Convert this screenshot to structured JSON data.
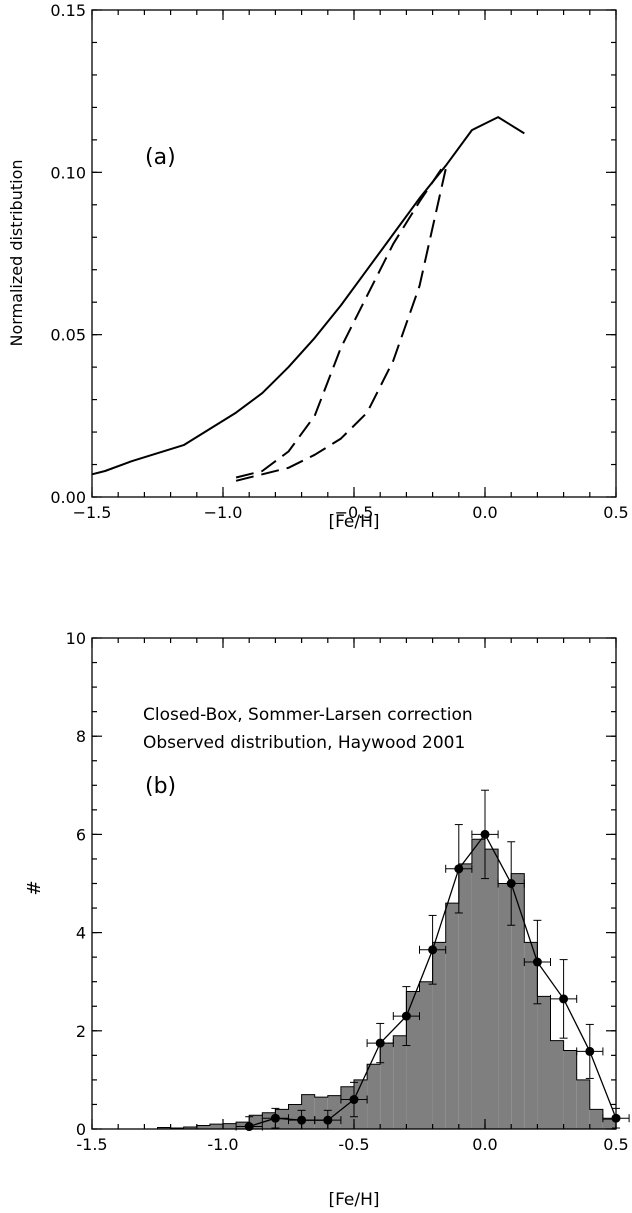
{
  "chart_data": [
    {
      "type": "line",
      "panel_label": "(a)",
      "xlabel": "[Fe/H]",
      "ylabel": "Normalized distribution",
      "xlim": [
        -1.5,
        0.5
      ],
      "ylim": [
        0.0,
        0.15
      ],
      "xticks": [
        -1.5,
        -1.0,
        -0.5,
        0.0,
        0.5
      ],
      "xtick_labels": [
        "−1.5",
        "−1.0",
        "−0.5",
        "0.0",
        "0.5"
      ],
      "yticks": [
        0.0,
        0.05,
        0.1,
        0.15
      ],
      "ytick_labels": [
        "0.00",
        "0.05",
        "0.10",
        "0.15"
      ],
      "series": [
        {
          "style": "solid",
          "x": [
            -1.5,
            -1.45,
            -1.35,
            -1.15,
            -0.95,
            -0.85,
            -0.75,
            -0.65,
            -0.55,
            -0.45,
            -0.35,
            -0.25,
            -0.15,
            -0.05,
            0.05,
            0.15
          ],
          "y": [
            0.007,
            0.008,
            0.011,
            0.016,
            0.026,
            0.032,
            0.04,
            0.049,
            0.059,
            0.07,
            0.081,
            0.092,
            0.102,
            0.113,
            0.117,
            0.112
          ]
        },
        {
          "style": "dashed",
          "x": [
            -0.95,
            -0.85,
            -0.75,
            -0.65,
            -0.55,
            -0.45,
            -0.35,
            -0.25,
            -0.15
          ],
          "y": [
            0.006,
            0.008,
            0.014,
            0.025,
            0.046,
            0.062,
            0.078,
            0.091,
            0.103
          ]
        },
        {
          "style": "dashed",
          "x": [
            -0.95,
            -0.85,
            -0.75,
            -0.65,
            -0.55,
            -0.45,
            -0.35,
            -0.25,
            -0.15
          ],
          "y": [
            0.005,
            0.007,
            0.009,
            0.013,
            0.018,
            0.026,
            0.042,
            0.065,
            0.101
          ]
        }
      ]
    },
    {
      "type": "bar",
      "panel_label": "(b)",
      "annotations": [
        "Closed-Box, Sommer-Larsen correction",
        "Observed distribution, Haywood 2001"
      ],
      "xlabel": "[Fe/H]",
      "ylabel": "#",
      "xlim": [
        -1.5,
        0.5
      ],
      "ylim": [
        0,
        10
      ],
      "xticks": [
        -1.5,
        -1.0,
        -0.5,
        0.0,
        0.5
      ],
      "xtick_labels": [
        "-1.5",
        "-1.0",
        "-0.5",
        "0.0",
        "0.5"
      ],
      "yticks": [
        0,
        2,
        4,
        6,
        8,
        10
      ],
      "ytick_labels": [
        "0",
        "2",
        "4",
        "6",
        "8",
        "10"
      ],
      "histogram": {
        "bin_width": 0.05,
        "bin_left": [
          -1.25,
          -1.2,
          -1.15,
          -1.1,
          -1.05,
          -1.0,
          -0.95,
          -0.9,
          -0.85,
          -0.8,
          -0.75,
          -0.7,
          -0.65,
          -0.6,
          -0.55,
          -0.5,
          -0.45,
          -0.4,
          -0.35,
          -0.3,
          -0.25,
          -0.2,
          -0.15,
          -0.1,
          -0.05,
          0.0,
          0.05,
          0.1,
          0.15,
          0.2,
          0.25,
          0.3,
          0.35,
          0.4,
          0.45
        ],
        "values": [
          0.03,
          0.02,
          0.04,
          0.07,
          0.1,
          0.11,
          0.14,
          0.28,
          0.33,
          0.4,
          0.5,
          0.7,
          0.65,
          0.68,
          0.86,
          1.0,
          1.32,
          1.75,
          1.9,
          2.8,
          3.0,
          3.8,
          4.6,
          5.4,
          5.9,
          5.7,
          5.0,
          5.2,
          3.8,
          2.7,
          1.8,
          1.6,
          1.0,
          0.4,
          0.2
        ]
      },
      "series": [
        {
          "style": "line-markers",
          "x": [
            -0.9,
            -0.8,
            -0.7,
            -0.6,
            -0.5,
            -0.4,
            -0.3,
            -0.2,
            -0.1,
            0.0,
            0.1,
            0.2,
            0.3,
            0.4,
            0.5
          ],
          "y": [
            0.05,
            0.22,
            0.18,
            0.18,
            0.6,
            1.75,
            2.3,
            3.65,
            5.3,
            6.0,
            5.0,
            3.4,
            2.65,
            1.58,
            0.22
          ],
          "yerr": [
            0.2,
            0.2,
            0.2,
            0.2,
            0.35,
            0.4,
            0.6,
            0.7,
            0.9,
            0.9,
            0.85,
            0.85,
            0.8,
            0.55,
            0.2
          ],
          "xerr": 0.05
        }
      ]
    }
  ]
}
